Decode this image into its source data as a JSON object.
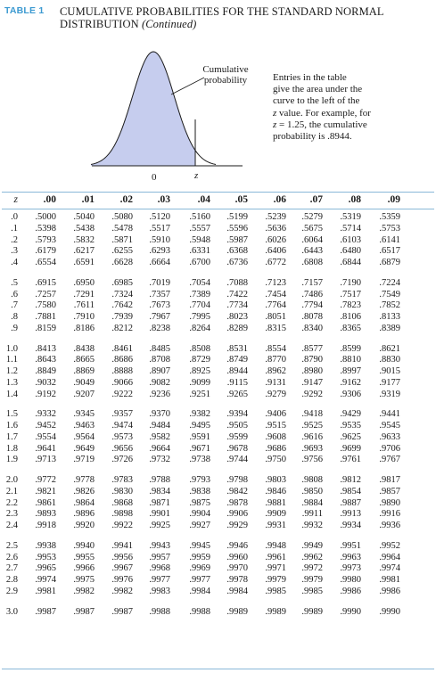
{
  "header": {
    "tag": "TABLE 1",
    "title_line1": "CUMULATIVE PROBABILITIES FOR THE STANDARD NORMAL",
    "title_line2": "DISTRIBUTION",
    "title_continued": "(Continued)"
  },
  "figure": {
    "cumulative_label_1": "Cumulative",
    "cumulative_label_2": "probability",
    "note_1": "Entries in the table",
    "note_2": "give the area under the",
    "note_3": "curve to the left of the",
    "note_4_var": "z",
    "note_4_rest": " value. For example, for",
    "note_5_var": "z",
    "note_5_rest": " = 1.25, the cumulative",
    "note_6": "probability is .8944.",
    "zero_label": "0",
    "z_label": "z",
    "colors": {
      "curve": "#1a1a1a",
      "shade": "#c6cdee"
    }
  },
  "table": {
    "z_header": "z",
    "columns": [
      ".00",
      ".01",
      ".02",
      ".03",
      ".04",
      ".05",
      ".06",
      ".07",
      ".08",
      ".09"
    ],
    "rows": [
      {
        "z": ".0",
        "v": [
          ".5000",
          ".5040",
          ".5080",
          ".5120",
          ".5160",
          ".5199",
          ".5239",
          ".5279",
          ".5319",
          ".5359"
        ]
      },
      {
        "z": ".1",
        "v": [
          ".5398",
          ".5438",
          ".5478",
          ".5517",
          ".5557",
          ".5596",
          ".5636",
          ".5675",
          ".5714",
          ".5753"
        ]
      },
      {
        "z": ".2",
        "v": [
          ".5793",
          ".5832",
          ".5871",
          ".5910",
          ".5948",
          ".5987",
          ".6026",
          ".6064",
          ".6103",
          ".6141"
        ]
      },
      {
        "z": ".3",
        "v": [
          ".6179",
          ".6217",
          ".6255",
          ".6293",
          ".6331",
          ".6368",
          ".6406",
          ".6443",
          ".6480",
          ".6517"
        ]
      },
      {
        "z": ".4",
        "v": [
          ".6554",
          ".6591",
          ".6628",
          ".6664",
          ".6700",
          ".6736",
          ".6772",
          ".6808",
          ".6844",
          ".6879"
        ]
      },
      {
        "z": ".5",
        "v": [
          ".6915",
          ".6950",
          ".6985",
          ".7019",
          ".7054",
          ".7088",
          ".7123",
          ".7157",
          ".7190",
          ".7224"
        ]
      },
      {
        "z": ".6",
        "v": [
          ".7257",
          ".7291",
          ".7324",
          ".7357",
          ".7389",
          ".7422",
          ".7454",
          ".7486",
          ".7517",
          ".7549"
        ]
      },
      {
        "z": ".7",
        "v": [
          ".7580",
          ".7611",
          ".7642",
          ".7673",
          ".7704",
          ".7734",
          ".7764",
          ".7794",
          ".7823",
          ".7852"
        ]
      },
      {
        "z": ".8",
        "v": [
          ".7881",
          ".7910",
          ".7939",
          ".7967",
          ".7995",
          ".8023",
          ".8051",
          ".8078",
          ".8106",
          ".8133"
        ]
      },
      {
        "z": ".9",
        "v": [
          ".8159",
          ".8186",
          ".8212",
          ".8238",
          ".8264",
          ".8289",
          ".8315",
          ".8340",
          ".8365",
          ".8389"
        ]
      },
      {
        "z": "1.0",
        "v": [
          ".8413",
          ".8438",
          ".8461",
          ".8485",
          ".8508",
          ".8531",
          ".8554",
          ".8577",
          ".8599",
          ".8621"
        ]
      },
      {
        "z": "1.1",
        "v": [
          ".8643",
          ".8665",
          ".8686",
          ".8708",
          ".8729",
          ".8749",
          ".8770",
          ".8790",
          ".8810",
          ".8830"
        ]
      },
      {
        "z": "1.2",
        "v": [
          ".8849",
          ".8869",
          ".8888",
          ".8907",
          ".8925",
          ".8944",
          ".8962",
          ".8980",
          ".8997",
          ".9015"
        ]
      },
      {
        "z": "1.3",
        "v": [
          ".9032",
          ".9049",
          ".9066",
          ".9082",
          ".9099",
          ".9115",
          ".9131",
          ".9147",
          ".9162",
          ".9177"
        ]
      },
      {
        "z": "1.4",
        "v": [
          ".9192",
          ".9207",
          ".9222",
          ".9236",
          ".9251",
          ".9265",
          ".9279",
          ".9292",
          ".9306",
          ".9319"
        ]
      },
      {
        "z": "1.5",
        "v": [
          ".9332",
          ".9345",
          ".9357",
          ".9370",
          ".9382",
          ".9394",
          ".9406",
          ".9418",
          ".9429",
          ".9441"
        ]
      },
      {
        "z": "1.6",
        "v": [
          ".9452",
          ".9463",
          ".9474",
          ".9484",
          ".9495",
          ".9505",
          ".9515",
          ".9525",
          ".9535",
          ".9545"
        ]
      },
      {
        "z": "1.7",
        "v": [
          ".9554",
          ".9564",
          ".9573",
          ".9582",
          ".9591",
          ".9599",
          ".9608",
          ".9616",
          ".9625",
          ".9633"
        ]
      },
      {
        "z": "1.8",
        "v": [
          ".9641",
          ".9649",
          ".9656",
          ".9664",
          ".9671",
          ".9678",
          ".9686",
          ".9693",
          ".9699",
          ".9706"
        ]
      },
      {
        "z": "1.9",
        "v": [
          ".9713",
          ".9719",
          ".9726",
          ".9732",
          ".9738",
          ".9744",
          ".9750",
          ".9756",
          ".9761",
          ".9767"
        ]
      },
      {
        "z": "2.0",
        "v": [
          ".9772",
          ".9778",
          ".9783",
          ".9788",
          ".9793",
          ".9798",
          ".9803",
          ".9808",
          ".9812",
          ".9817"
        ]
      },
      {
        "z": "2.1",
        "v": [
          ".9821",
          ".9826",
          ".9830",
          ".9834",
          ".9838",
          ".9842",
          ".9846",
          ".9850",
          ".9854",
          ".9857"
        ]
      },
      {
        "z": "2.2",
        "v": [
          ".9861",
          ".9864",
          ".9868",
          ".9871",
          ".9875",
          ".9878",
          ".9881",
          ".9884",
          ".9887",
          ".9890"
        ]
      },
      {
        "z": "2.3",
        "v": [
          ".9893",
          ".9896",
          ".9898",
          ".9901",
          ".9904",
          ".9906",
          ".9909",
          ".9911",
          ".9913",
          ".9916"
        ]
      },
      {
        "z": "2.4",
        "v": [
          ".9918",
          ".9920",
          ".9922",
          ".9925",
          ".9927",
          ".9929",
          ".9931",
          ".9932",
          ".9934",
          ".9936"
        ]
      },
      {
        "z": "2.5",
        "v": [
          ".9938",
          ".9940",
          ".9941",
          ".9943",
          ".9945",
          ".9946",
          ".9948",
          ".9949",
          ".9951",
          ".9952"
        ]
      },
      {
        "z": "2.6",
        "v": [
          ".9953",
          ".9955",
          ".9956",
          ".9957",
          ".9959",
          ".9960",
          ".9961",
          ".9962",
          ".9963",
          ".9964"
        ]
      },
      {
        "z": "2.7",
        "v": [
          ".9965",
          ".9966",
          ".9967",
          ".9968",
          ".9969",
          ".9970",
          ".9971",
          ".9972",
          ".9973",
          ".9974"
        ]
      },
      {
        "z": "2.8",
        "v": [
          ".9974",
          ".9975",
          ".9976",
          ".9977",
          ".9977",
          ".9978",
          ".9979",
          ".9979",
          ".9980",
          ".9981"
        ]
      },
      {
        "z": "2.9",
        "v": [
          ".9981",
          ".9982",
          ".9982",
          ".9983",
          ".9984",
          ".9984",
          ".9985",
          ".9985",
          ".9986",
          ".9986"
        ]
      },
      {
        "z": "3.0",
        "v": [
          ".9987",
          ".9987",
          ".9987",
          ".9988",
          ".9988",
          ".9989",
          ".9989",
          ".9989",
          ".9990",
          ".9990"
        ]
      }
    ]
  }
}
